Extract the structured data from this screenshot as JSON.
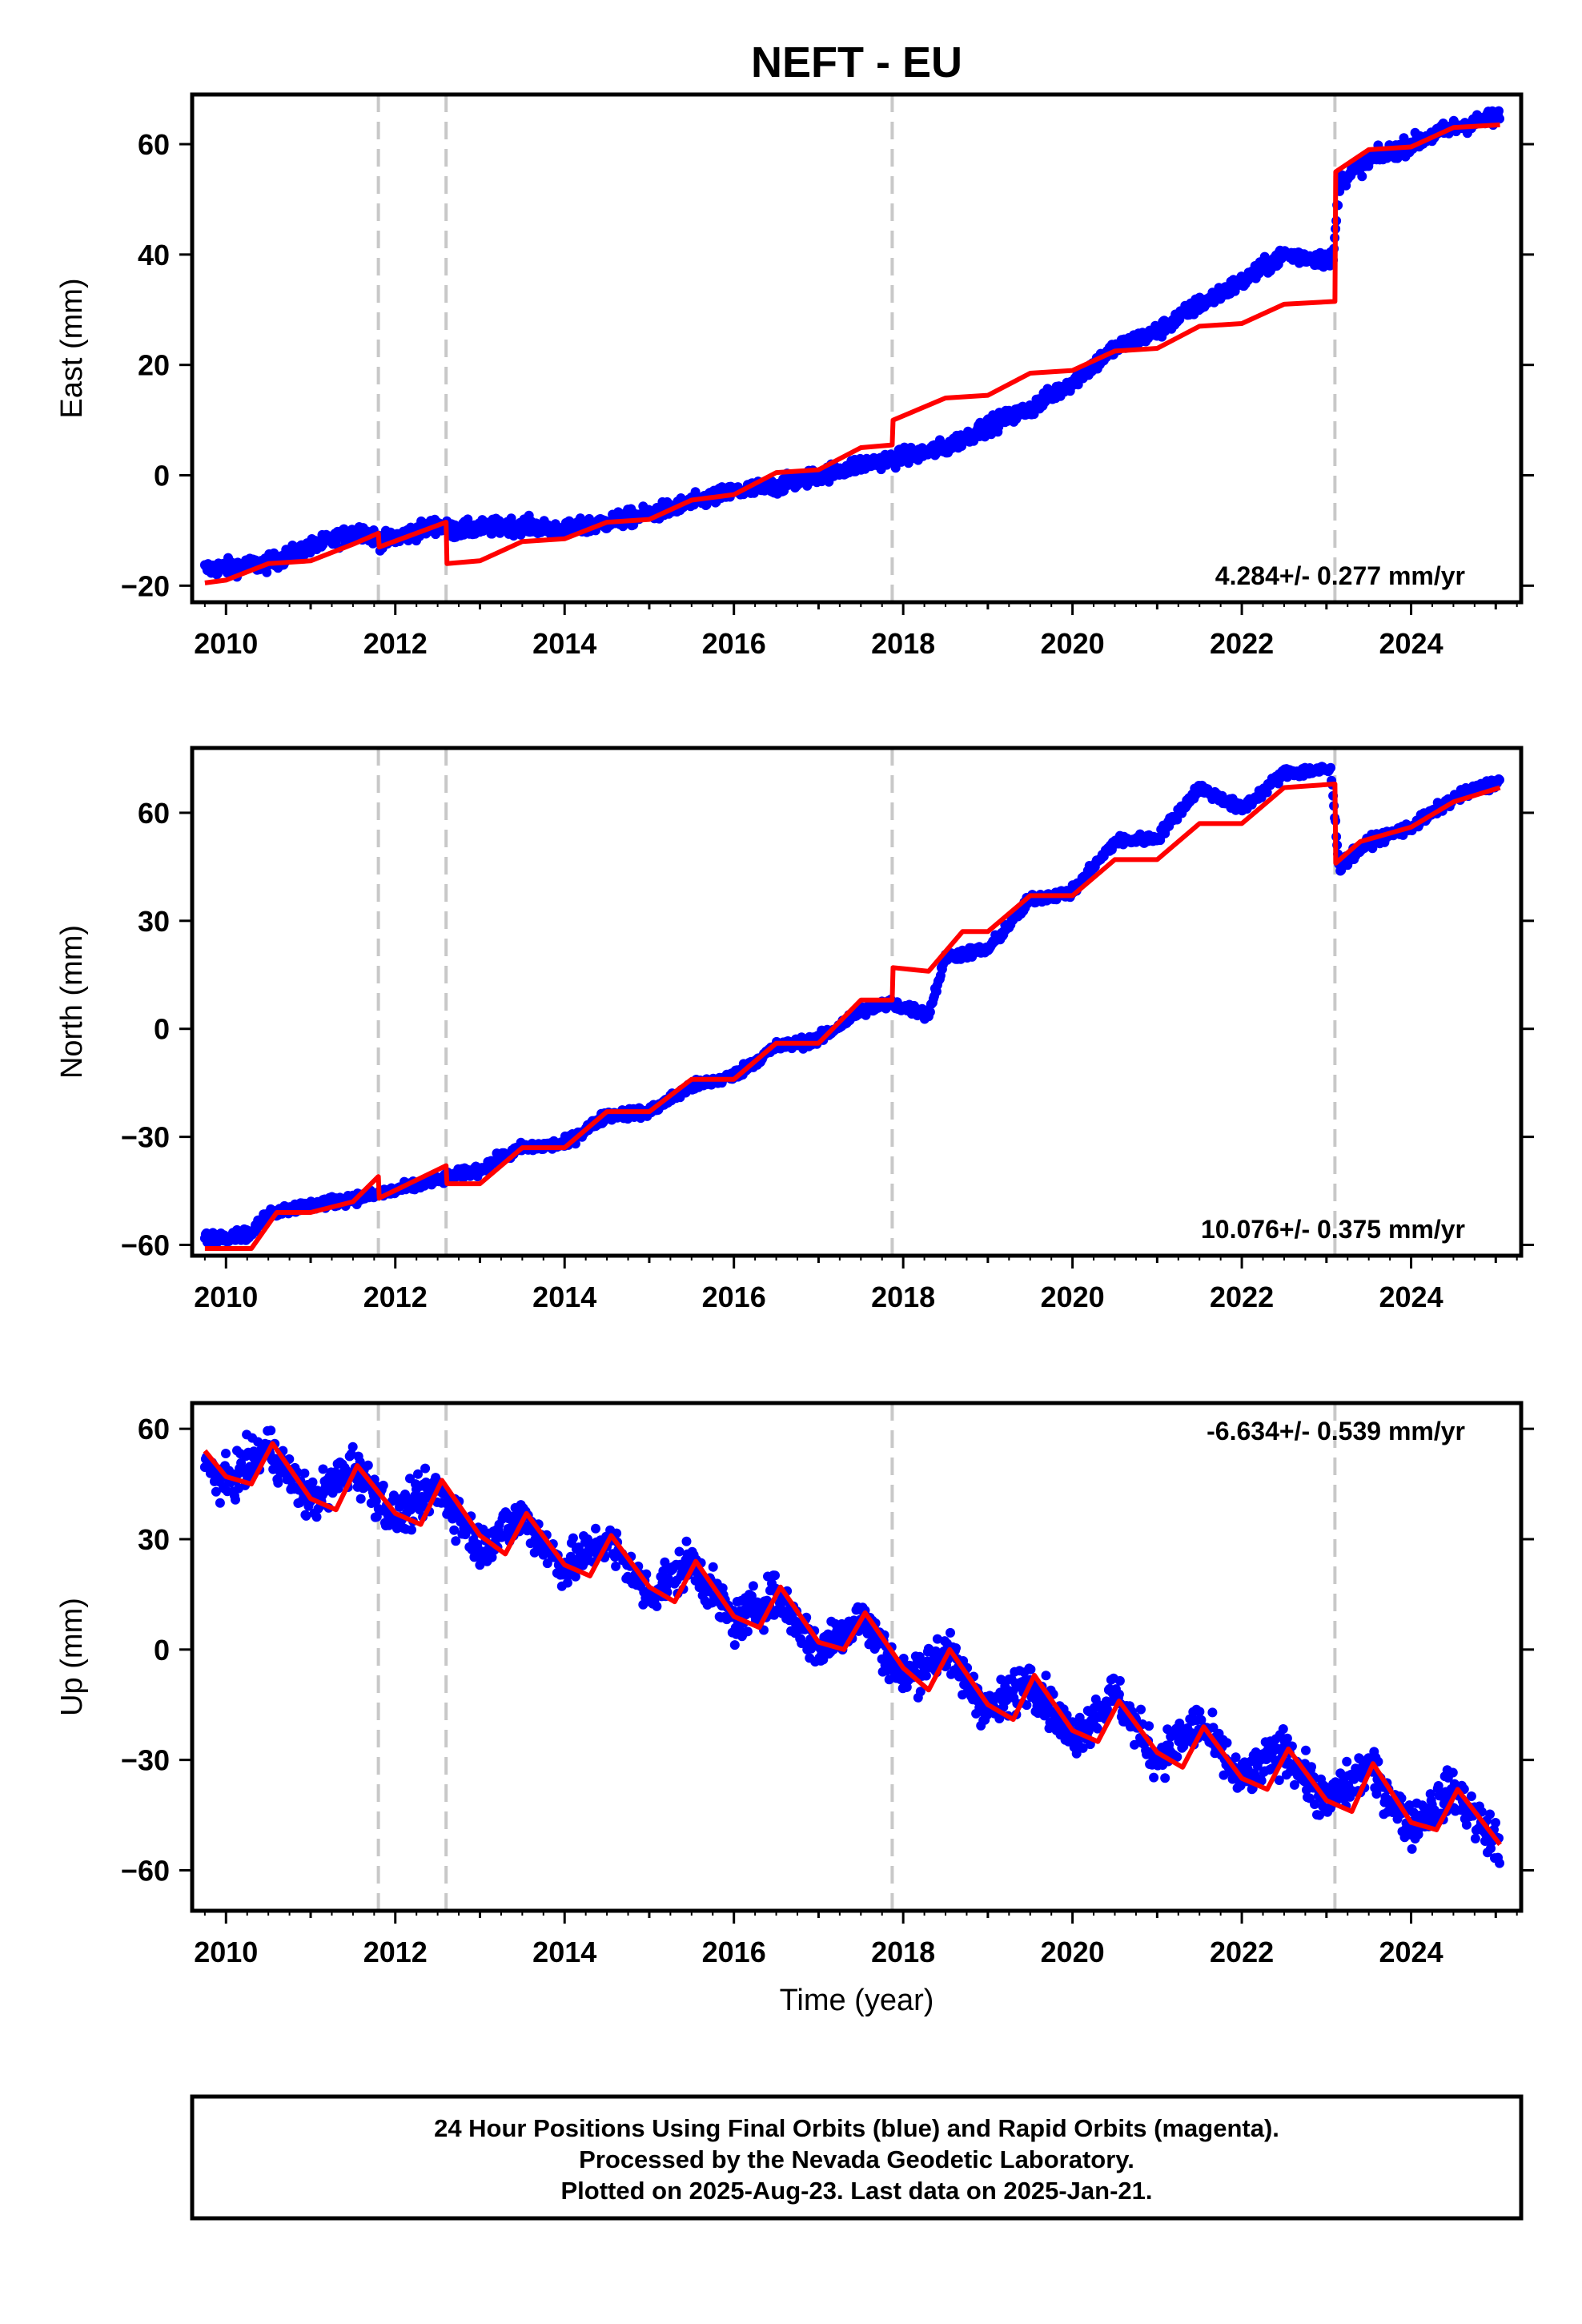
{
  "chart_data": {
    "title": "NEFT - EU",
    "type": "scatter",
    "xlabel": "Time (year)",
    "xlim": [
      2009.6,
      2025.3
    ],
    "xticks": [
      2010,
      2012,
      2014,
      2016,
      2018,
      2020,
      2022,
      2024
    ],
    "equipment_change_epochs": [
      2011.8,
      2012.6,
      2017.87,
      2023.1
    ],
    "panels": [
      {
        "name": "East",
        "ylabel": "East (mm)",
        "ylim": [
          -23,
          69
        ],
        "yticks": [
          -20,
          0,
          20,
          40,
          60
        ],
        "rate_text": "4.284+/- 0.277 mm/yr",
        "data_x": [
          2009.75,
          2010.5,
          2011.0,
          2011.6,
          2011.85,
          2012.5,
          2012.65,
          2013.5,
          2014.0,
          2015.0,
          2016.0,
          2016.5,
          2017.0,
          2017.5,
          2017.9,
          2018.5,
          2019.0,
          2019.5,
          2020.0,
          2020.5,
          2021.0,
          2021.5,
          2022.0,
          2022.5,
          2023.08,
          2023.15,
          2023.5,
          2024.0,
          2024.5,
          2025.05
        ],
        "data_y": [
          -17,
          -16,
          -13,
          -10,
          -12,
          -9,
          -10,
          -9,
          -10,
          -7,
          -3,
          -2,
          0,
          2,
          3,
          5,
          9,
          12,
          17,
          23,
          26,
          31,
          35,
          40,
          39,
          53,
          57,
          60,
          63,
          65
        ],
        "model_x": [
          2009.75,
          2010.0,
          2010.5,
          2011.0,
          2011.5,
          2011.8,
          2011.81,
          2012.6,
          2012.61,
          2013.0,
          2013.5,
          2014.0,
          2014.5,
          2015.0,
          2015.5,
          2016.0,
          2016.5,
          2017.0,
          2017.5,
          2017.87,
          2017.88,
          2018.5,
          2019.0,
          2019.5,
          2020.0,
          2020.5,
          2021.0,
          2021.5,
          2022.0,
          2022.5,
          2023.1,
          2023.11,
          2023.5,
          2024.0,
          2024.5,
          2025.05
        ],
        "model_y": [
          -19.5,
          -19,
          -16,
          -15.5,
          -12.5,
          -10.5,
          -13,
          -8.5,
          -16,
          -15.5,
          -12,
          -11.5,
          -8.5,
          -8,
          -4.5,
          -3.5,
          0.5,
          1,
          5,
          5.5,
          10,
          14,
          14.5,
          18.5,
          19,
          22.5,
          23,
          27,
          27.5,
          31,
          31.5,
          55,
          59,
          59.5,
          63,
          63.5
        ]
      },
      {
        "name": "North",
        "ylabel": "North (mm)",
        "ylim": [
          -63,
          78
        ],
        "yticks": [
          -60,
          -30,
          0,
          30,
          60
        ],
        "rate_text": "10.076+/- 0.375 mm/yr",
        "data_x": [
          2009.75,
          2010.3,
          2010.5,
          2011.0,
          2011.8,
          2012.5,
          2013.0,
          2013.5,
          2014.0,
          2014.5,
          2015.0,
          2015.5,
          2016.0,
          2016.5,
          2017.0,
          2017.5,
          2017.85,
          2018.3,
          2018.5,
          2019.0,
          2019.5,
          2020.0,
          2020.5,
          2021.0,
          2021.5,
          2022.0,
          2022.5,
          2023.05,
          2023.15,
          2023.5,
          2024.0,
          2024.5,
          2025.05
        ],
        "data_y": [
          -58,
          -57,
          -51,
          -49,
          -46,
          -42,
          -39,
          -33,
          -32,
          -24,
          -23,
          -16,
          -13,
          -5,
          -3,
          5,
          7,
          4,
          20,
          22,
          36,
          38,
          52,
          53,
          67,
          61,
          71,
          72,
          45,
          52,
          56,
          64,
          69
        ],
        "model_x": [
          2009.75,
          2010.3,
          2010.6,
          2011.0,
          2011.5,
          2011.8,
          2011.81,
          2012.6,
          2012.61,
          2013.0,
          2013.5,
          2014.0,
          2014.5,
          2015.0,
          2015.5,
          2016.0,
          2016.5,
          2017.0,
          2017.5,
          2017.87,
          2017.88,
          2018.3,
          2018.7,
          2019.0,
          2019.5,
          2020.0,
          2020.5,
          2021.0,
          2021.5,
          2022.0,
          2022.5,
          2023.1,
          2023.11,
          2023.4,
          2024.0,
          2024.5,
          2025.05
        ],
        "model_y": [
          -61,
          -61,
          -51,
          -51,
          -48,
          -41,
          -47,
          -38,
          -43,
          -43,
          -33,
          -33,
          -23,
          -23,
          -14,
          -14,
          -4,
          -4,
          8,
          8,
          17,
          16,
          27,
          27,
          37,
          37,
          47,
          47,
          57,
          57,
          67,
          68,
          46,
          52,
          56,
          63,
          67
        ]
      },
      {
        "name": "Up",
        "ylabel": "Up (mm)",
        "ylim": [
          -71,
          67
        ],
        "yticks": [
          -60,
          -30,
          0,
          30,
          60
        ],
        "rate_text": "-6.634+/- 0.539 mm/yr",
        "data_x": [
          2009.75,
          2010.0,
          2010.5,
          2011.0,
          2011.5,
          2012.0,
          2012.5,
          2013.0,
          2013.5,
          2014.0,
          2014.5,
          2015.0,
          2015.5,
          2016.0,
          2016.5,
          2017.0,
          2017.5,
          2018.0,
          2018.5,
          2019.0,
          2019.5,
          2020.0,
          2020.5,
          2021.0,
          2021.5,
          2022.0,
          2022.5,
          2023.0,
          2023.5,
          2024.0,
          2024.5,
          2025.05
        ],
        "data_y": [
          50,
          45,
          55,
          40,
          50,
          36,
          44,
          28,
          36,
          22,
          30,
          15,
          24,
          7,
          15,
          0,
          9,
          -8,
          0,
          -17,
          -8,
          -24,
          -12,
          -30,
          -20,
          -36,
          -27,
          -42,
          -32,
          -48,
          -38,
          -54
        ],
        "model_x": [
          2009.75,
          2010.0,
          2010.3,
          2010.55,
          2011.0,
          2011.3,
          2011.55,
          2012.0,
          2012.3,
          2012.55,
          2013.0,
          2013.3,
          2013.55,
          2014.0,
          2014.3,
          2014.55,
          2015.0,
          2015.3,
          2015.55,
          2016.0,
          2016.3,
          2016.55,
          2017.0,
          2017.3,
          2017.55,
          2018.0,
          2018.3,
          2018.55,
          2019.0,
          2019.3,
          2019.55,
          2020.0,
          2020.3,
          2020.55,
          2021.0,
          2021.3,
          2021.55,
          2022.0,
          2022.3,
          2022.55,
          2023.0,
          2023.3,
          2023.55,
          2024.0,
          2024.3,
          2024.55,
          2025.05
        ],
        "model_y": [
          54,
          47,
          45,
          56,
          41,
          38,
          50,
          37,
          34,
          46,
          31,
          26,
          37,
          23,
          20,
          31,
          17,
          13,
          24,
          9,
          6,
          17,
          2,
          0,
          10,
          -5,
          -11,
          0,
          -15,
          -19,
          -7,
          -22,
          -25,
          -14,
          -28,
          -32,
          -21,
          -35,
          -38,
          -27,
          -41,
          -44,
          -31,
          -47,
          -49,
          -38,
          -53
        ]
      }
    ]
  },
  "footer": {
    "line1": "24 Hour Positions Using Final Orbits (blue) and Rapid Orbits (magenta).",
    "line2": "Processed by the Nevada Geodetic Laboratory.",
    "line3": "Plotted on 2025-Aug-23. Last data on 2025-Jan-21."
  }
}
